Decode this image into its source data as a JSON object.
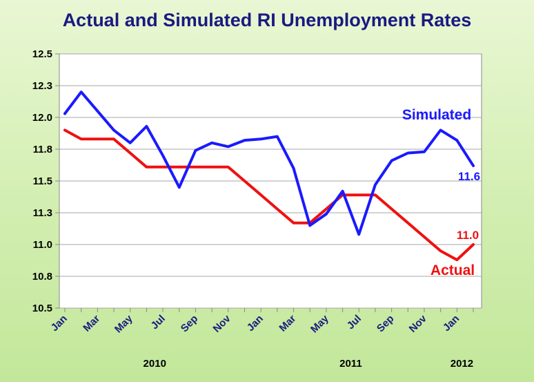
{
  "chart_data": {
    "type": "line",
    "title": "Actual and Simulated RI Unemployment Rates",
    "ylim": [
      10.5,
      12.5
    ],
    "yticks": [
      "12.5",
      "12.3",
      "12.0",
      "11.8",
      "11.5",
      "11.3",
      "11.0",
      "10.8",
      "10.5"
    ],
    "ytick_values": [
      12.5,
      12.25,
      12.0,
      11.75,
      11.5,
      11.25,
      11.0,
      10.75,
      10.5
    ],
    "grid": true,
    "x_tick_labels": [
      "Jan",
      "Mar",
      "May",
      "Jul",
      "Sep",
      "Nov",
      "Jan",
      "Mar",
      "May",
      "Jul",
      "Sep",
      "Nov",
      "Jan"
    ],
    "x_year_labels": [
      "2010",
      "2011",
      "2012"
    ],
    "x": [
      "2010-01",
      "2010-02",
      "2010-03",
      "2010-04",
      "2010-05",
      "2010-06",
      "2010-07",
      "2010-08",
      "2010-09",
      "2010-10",
      "2010-11",
      "2010-12",
      "2011-01",
      "2011-02",
      "2011-03",
      "2011-04",
      "2011-05",
      "2011-06",
      "2011-07",
      "2011-08",
      "2011-09",
      "2011-10",
      "2011-11",
      "2011-12",
      "2012-01",
      "2012-02"
    ],
    "series": [
      {
        "name": "Simulated",
        "color": "#1a1aff",
        "end_label": "11.6",
        "values": [
          12.03,
          12.2,
          12.05,
          11.9,
          11.8,
          11.93,
          11.7,
          11.45,
          11.74,
          11.8,
          11.77,
          11.82,
          11.83,
          11.85,
          11.6,
          11.15,
          11.24,
          11.42,
          11.08,
          11.47,
          11.66,
          11.72,
          11.73,
          11.9,
          11.82,
          11.62
        ]
      },
      {
        "name": "Actual",
        "color": "#ee1111",
        "end_label": "11.0",
        "values": [
          11.9,
          11.83,
          11.83,
          11.83,
          11.72,
          11.61,
          11.61,
          11.61,
          11.61,
          11.61,
          11.61,
          11.5,
          11.39,
          11.28,
          11.17,
          11.17,
          11.28,
          11.39,
          11.39,
          11.39,
          11.28,
          11.17,
          11.06,
          10.95,
          10.88,
          11.0
        ]
      }
    ]
  }
}
